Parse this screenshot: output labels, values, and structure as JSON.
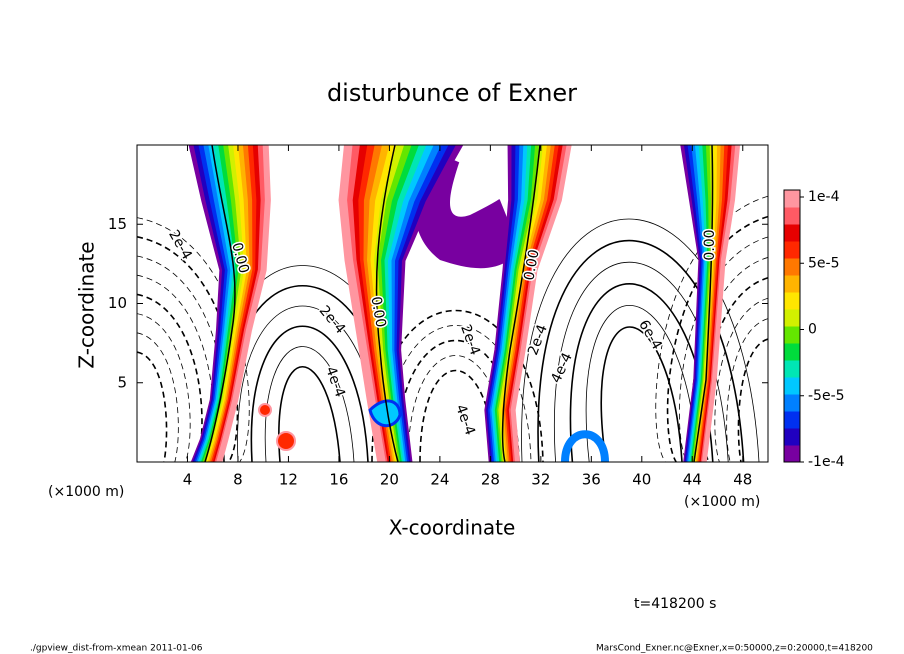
{
  "chart_data": {
    "type": "contour",
    "title": "disturbunce of Exner",
    "xlabel": "X-coordinate",
    "ylabel": "Z-coordinate",
    "x_unit": "(×1000 m)",
    "xlim": [
      0,
      50
    ],
    "xticks": [
      4,
      8,
      12,
      16,
      20,
      24,
      28,
      32,
      36,
      40,
      44,
      48
    ],
    "ylim": [
      0,
      20
    ],
    "yticks": [
      5,
      10,
      15
    ],
    "colorbar": {
      "lim": [
        -0.0001,
        0.0001
      ],
      "ticks": [
        {
          "value": 0.0001,
          "label": "1e-4"
        },
        {
          "value": 5e-05,
          "label": "5e-5"
        },
        0,
        {
          "value": -5e-05,
          "label": "-5e-5"
        },
        {
          "value": -0.0001,
          "label": "-1e-4"
        }
      ],
      "colors": [
        "#7800a0",
        "#2000c0",
        "#0030f0",
        "#0080ff",
        "#00c8ff",
        "#00e6b4",
        "#00dc3c",
        "#64e600",
        "#d2f000",
        "#ffe600",
        "#ffb400",
        "#ff7800",
        "#ff2800",
        "#e60000",
        "#ff5a64",
        "#ff96a0"
      ]
    },
    "contour_labels": [
      "2e-4",
      "0.00",
      "0.00",
      "2e-4",
      "4e-4",
      "2e-4",
      "4e-4",
      "0.00",
      "2e-4",
      "4e-4",
      "6e-4",
      "0.00"
    ],
    "time_label": "t=418200 s",
    "footer_left": "./gpview_dist-from-xmean  2011-01-06",
    "footer_right": "MarsCond_Exner.nc@Exner,x=0:50000,z=0:20000,t=418200"
  }
}
